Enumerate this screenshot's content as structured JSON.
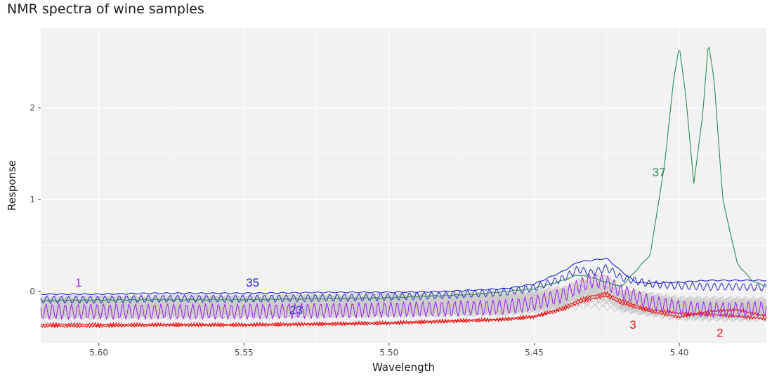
{
  "chart_data": {
    "type": "line",
    "title": "NMR spectra of wine samples",
    "xlabel": "Wavelength",
    "ylabel": "Response",
    "x_reversed": true,
    "xlim": [
      5.62,
      5.37
    ],
    "ylim": [
      -0.56,
      2.87
    ],
    "x_ticks": [
      5.6,
      5.55,
      5.5,
      5.45,
      5.4
    ],
    "x_tick_labels": [
      "5.60",
      "5.55",
      "5.50",
      "5.45",
      "5.40"
    ],
    "y_ticks": [
      0,
      1,
      2
    ],
    "y_tick_labels": [
      "0",
      "1",
      "2"
    ],
    "grid": true,
    "legend": "none",
    "background_color": "#f2f2f2",
    "grid_color": "#ffffff",
    "series": [
      {
        "name": "37",
        "color": "#2e8b57",
        "x": [
          5.62,
          5.58,
          5.55,
          5.5,
          5.47,
          5.45,
          5.44,
          5.435,
          5.43,
          5.425,
          5.42,
          5.41,
          5.405,
          5.402,
          5.4,
          5.398,
          5.395,
          5.392,
          5.39,
          5.388,
          5.385,
          5.38,
          5.375,
          5.37
        ],
        "values": [
          -0.1,
          -0.09,
          -0.09,
          -0.07,
          -0.03,
          0.03,
          0.12,
          0.18,
          0.15,
          0.1,
          0.05,
          0.4,
          1.4,
          2.3,
          2.67,
          2.2,
          1.18,
          1.9,
          2.72,
          2.3,
          1.0,
          0.3,
          0.12,
          0.05
        ]
      },
      {
        "name": "35",
        "color": "#1f1fd6",
        "x": [
          5.62,
          5.6,
          5.58,
          5.55,
          5.52,
          5.5,
          5.48,
          5.46,
          5.45,
          5.44,
          5.435,
          5.43,
          5.425,
          5.42,
          5.415,
          5.41,
          5.4,
          5.39,
          5.38,
          5.37
        ],
        "values": [
          -0.03,
          -0.03,
          -0.02,
          -0.02,
          -0.01,
          -0.01,
          0.0,
          0.03,
          0.08,
          0.22,
          0.32,
          0.34,
          0.36,
          0.22,
          0.1,
          0.09,
          0.1,
          0.12,
          0.12,
          0.12
        ]
      },
      {
        "name": "23",
        "color": "#3a3ac8",
        "x": [
          5.62,
          5.6,
          5.58,
          5.55,
          5.52,
          5.5,
          5.48,
          5.46,
          5.45,
          5.44,
          5.435,
          5.43,
          5.425,
          5.42,
          5.41,
          5.4,
          5.39,
          5.38,
          5.37
        ],
        "values": [
          -0.09,
          -0.09,
          -0.08,
          -0.08,
          -0.07,
          -0.06,
          -0.04,
          -0.01,
          0.04,
          0.14,
          0.24,
          0.2,
          0.26,
          0.15,
          0.08,
          0.06,
          0.05,
          0.05,
          0.04
        ]
      },
      {
        "name": "1",
        "color": "#a020f0",
        "x": [
          5.62,
          5.6,
          5.58,
          5.55,
          5.52,
          5.5,
          5.48,
          5.46,
          5.45,
          5.44,
          5.435,
          5.43,
          5.425,
          5.42,
          5.41,
          5.4,
          5.39,
          5.38,
          5.37
        ],
        "values": [
          -0.22,
          -0.22,
          -0.22,
          -0.22,
          -0.21,
          -0.2,
          -0.19,
          -0.17,
          -0.13,
          -0.04,
          0.05,
          0.12,
          0.1,
          0.0,
          -0.12,
          -0.18,
          -0.2,
          -0.2,
          -0.19
        ]
      },
      {
        "name": "3",
        "color": "#ee1111",
        "x": [
          5.62,
          5.6,
          5.58,
          5.55,
          5.52,
          5.5,
          5.48,
          5.46,
          5.45,
          5.44,
          5.435,
          5.43,
          5.425,
          5.42,
          5.41,
          5.4,
          5.39,
          5.38,
          5.37
        ],
        "values": [
          -0.36,
          -0.36,
          -0.36,
          -0.36,
          -0.35,
          -0.34,
          -0.32,
          -0.3,
          -0.27,
          -0.18,
          -0.1,
          -0.05,
          -0.02,
          -0.1,
          -0.2,
          -0.24,
          -0.25,
          -0.27,
          -0.3
        ]
      },
      {
        "name": "2",
        "color": "#ee1111",
        "x": [
          5.62,
          5.6,
          5.58,
          5.55,
          5.52,
          5.5,
          5.48,
          5.46,
          5.45,
          5.44,
          5.435,
          5.43,
          5.425,
          5.42,
          5.41,
          5.4,
          5.39,
          5.38,
          5.37
        ],
        "values": [
          -0.38,
          -0.38,
          -0.37,
          -0.37,
          -0.36,
          -0.35,
          -0.33,
          -0.31,
          -0.28,
          -0.2,
          -0.13,
          -0.08,
          -0.05,
          -0.13,
          -0.22,
          -0.28,
          -0.22,
          -0.2,
          -0.27
        ]
      }
    ],
    "background_series": {
      "color": "#c8c8c8",
      "count": 34,
      "description_shape": "similar baselines between -0.30 and -0.05 with a peak near 5.43"
    },
    "labels": [
      {
        "text": "1",
        "x": 5.607,
        "y": 0.1,
        "color": "#a020f0"
      },
      {
        "text": "35",
        "x": 5.547,
        "y": 0.1,
        "color": "#1f1fd6"
      },
      {
        "text": "23",
        "x": 5.532,
        "y": -0.2,
        "color": "#3a3ac8"
      },
      {
        "text": "37",
        "x": 5.407,
        "y": 1.3,
        "color": "#2e8b57"
      },
      {
        "text": "3",
        "x": 5.416,
        "y": -0.36,
        "color": "#ee1111"
      },
      {
        "text": "2",
        "x": 5.386,
        "y": -0.45,
        "color": "#ee1111"
      }
    ]
  }
}
